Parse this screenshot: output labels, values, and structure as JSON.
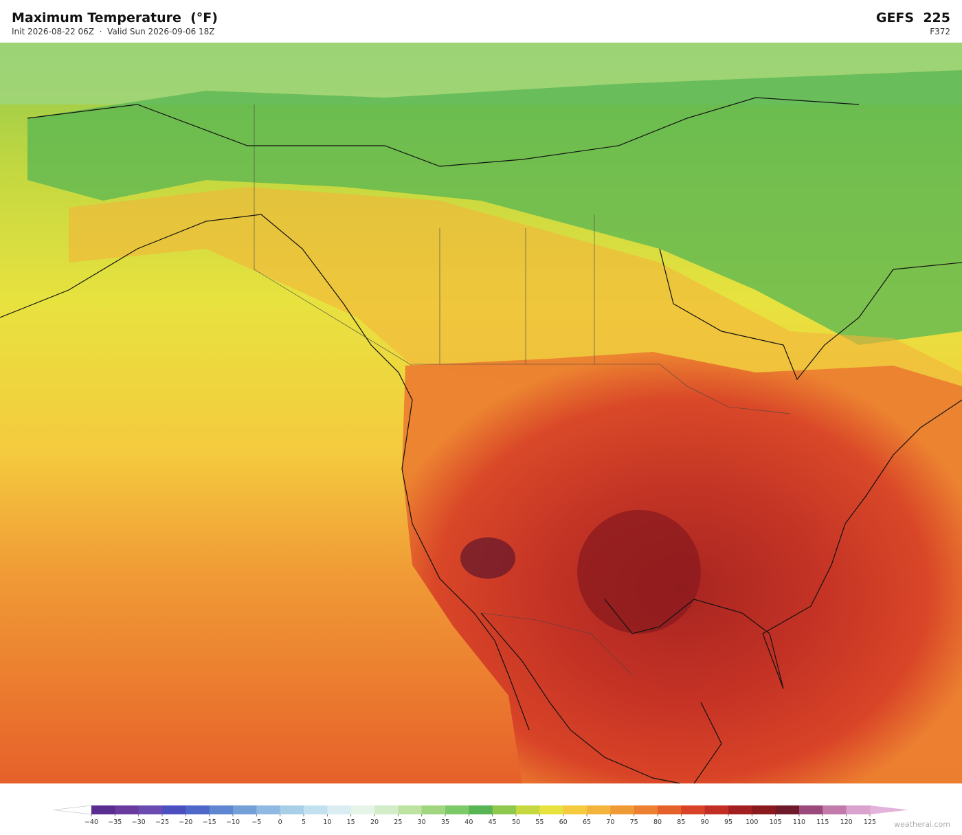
{
  "header": {
    "title": "Maximum Temperature  (°F)",
    "subtitle": "Init 2026-08-22 06Z  ·  Valid Sun 2026-09-06 18Z",
    "model": "GEFS  225",
    "forecast_hour": "F372"
  },
  "colorbar": {
    "ticks": [
      {
        "value": -40,
        "label": "−40"
      },
      {
        "value": -35,
        "label": "−35"
      },
      {
        "value": -30,
        "label": "−30"
      },
      {
        "value": -25,
        "label": "−25"
      },
      {
        "value": -20,
        "label": "−20"
      },
      {
        "value": -15,
        "label": "−15"
      },
      {
        "value": -10,
        "label": "−10"
      },
      {
        "value": -5,
        "label": "−5"
      },
      0,
      5,
      10,
      15,
      20,
      25,
      30,
      35,
      40,
      45,
      50,
      55,
      60,
      65,
      70,
      75,
      80,
      85,
      90,
      95,
      100,
      105,
      110,
      115,
      120,
      125
    ],
    "colors": [
      "#5a2d91",
      "#6a3a9e",
      "#6a4cb0",
      "#4b4fbf",
      "#4f67c9",
      "#5f86d0",
      "#74a0d8",
      "#8fb9e0",
      "#a8cfe8",
      "#c2e1ef",
      "#d9edf2",
      "#e6f4e8",
      "#d2ecc8",
      "#bde3a0",
      "#9fd67f",
      "#7cc96a",
      "#57b553",
      "#8ec84c",
      "#c5d840",
      "#e8e23f",
      "#f4cb3e",
      "#f3b43b",
      "#f09a36",
      "#ec8030",
      "#e6602a",
      "#d84227",
      "#c22e24",
      "#a41f20",
      "#8a1a1e",
      "#6e1a2a",
      "#9c4a7c",
      "#c27aab",
      "#d9a3ce"
    ],
    "under_color": "#ffffff",
    "over_color": "#e3b3db"
  },
  "watermark": "weatherai.com"
}
